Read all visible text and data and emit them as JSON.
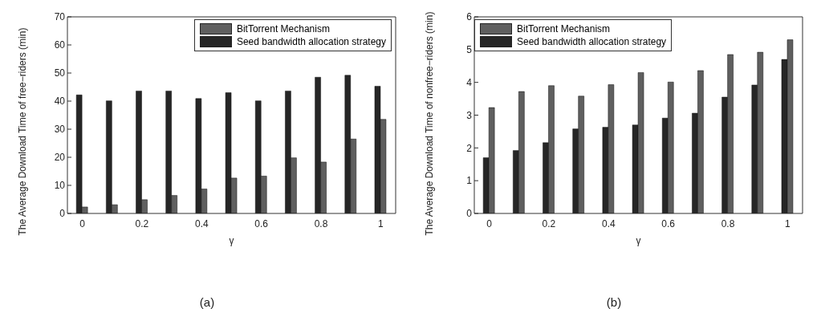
{
  "chart_data": [
    {
      "type": "bar",
      "xlabel": "γ",
      "ylabel": "The Average Download Time of free−riders (min)",
      "categories": [
        "0",
        null,
        "0.2",
        null,
        "0.4",
        null,
        "0.6",
        null,
        "0.8",
        null,
        "1"
      ],
      "series": [
        {
          "name": "Seed bandwidth allocation strategy",
          "color": "#262626",
          "values": [
            42.2,
            40.1,
            43.6,
            43.6,
            40.9,
            43,
            40.1,
            43.6,
            48.5,
            49.2,
            45.3
          ]
        },
        {
          "name": "BitTorrent Mechanism",
          "color": "#5f5f5f",
          "values": [
            2.3,
            3.1,
            4.9,
            6.4,
            8.7,
            12.6,
            13.3,
            19.8,
            18.3,
            26.5,
            33.5
          ]
        }
      ],
      "ylim": [
        0,
        70
      ],
      "yticks": [
        0,
        10,
        20,
        30,
        40,
        50,
        60,
        70
      ],
      "legend": "top right",
      "annotations": [
        "(a)"
      ]
    },
    {
      "type": "bar",
      "xlabel": "γ",
      "ylabel": "The Average Download Time of nonfree−riders (min)",
      "categories": [
        "0",
        null,
        "0.2",
        null,
        "0.4",
        null,
        "0.6",
        null,
        "0.8",
        null,
        "1"
      ],
      "series": [
        {
          "name": "Seed bandwidth allocation strategy",
          "color": "#262626",
          "values": [
            1.7,
            1.92,
            2.16,
            2.58,
            2.63,
            2.7,
            2.91,
            3.06,
            3.55,
            3.92,
            4.7
          ]
        },
        {
          "name": "BitTorrent Mechanism",
          "color": "#5f5f5f",
          "values": [
            3.23,
            3.72,
            3.9,
            3.58,
            3.93,
            4.3,
            4.01,
            4.36,
            4.85,
            4.92,
            5.3
          ]
        }
      ],
      "ylim": [
        0,
        6
      ],
      "yticks": [
        0,
        1,
        2,
        3,
        4,
        5,
        6
      ],
      "legend": "top left",
      "annotations": [
        "(b)"
      ]
    }
  ]
}
